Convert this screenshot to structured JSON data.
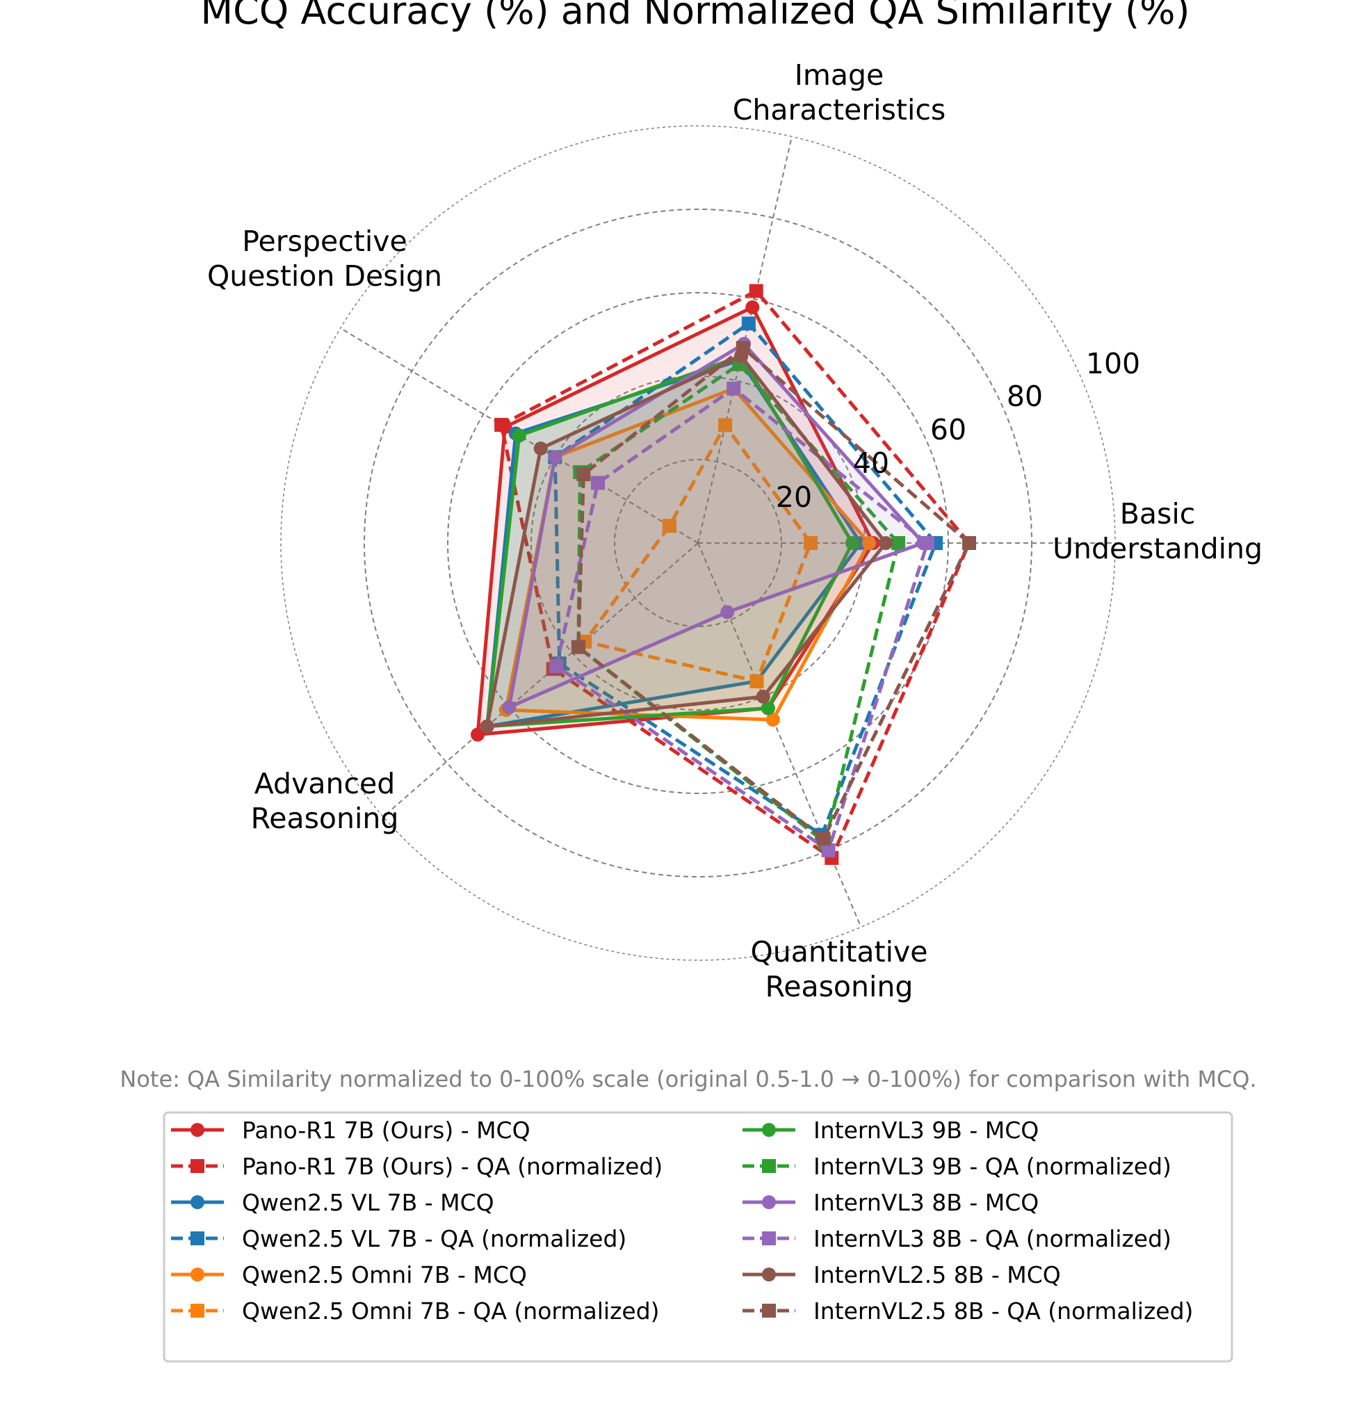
{
  "chart_data": {
    "type": "radar",
    "title": "MCQ Accuracy (%) and Normalized QA Similarity (%)",
    "axes": [
      [
        "Basic",
        "Understanding"
      ],
      [
        "Image",
        "Characteristics"
      ],
      [
        "Perspective",
        "Question Design"
      ],
      [
        "Advanced",
        "Reasoning"
      ],
      [
        "Quantitative",
        "Reasoning"
      ]
    ],
    "rlim": [
      0,
      100
    ],
    "rticks": [
      "20",
      "40",
      "60",
      "80",
      "100"
    ],
    "grid": true,
    "legend_position": "bottom",
    "note": "Note: QA Similarity normalized to 0-100% scale (original 0.5-1.0 → 0-100%) for comparison with MCQ.",
    "series": [
      {
        "name": "Pano-R1 7B (Ours) - MCQ",
        "color": "#d62728",
        "style": "solid",
        "marker": "circle",
        "fill": true,
        "values": [
          42,
          58,
          54,
          70,
          43
        ]
      },
      {
        "name": "Pano-R1 7B (Ours) - QA (normalized)",
        "color": "#d62728",
        "style": "dashed",
        "marker": "square",
        "fill": false,
        "values": [
          65,
          62,
          55,
          46,
          82
        ]
      },
      {
        "name": "Qwen2.5 VL 7B - MCQ",
        "color": "#1f77b4",
        "style": "solid",
        "marker": "circle",
        "fill": true,
        "values": [
          39,
          45,
          51,
          67,
          36
        ]
      },
      {
        "name": "Qwen2.5 VL 7B - QA (normalized)",
        "color": "#1f77b4",
        "style": "dashed",
        "marker": "square",
        "fill": false,
        "values": [
          57,
          54,
          40,
          44,
          76
        ]
      },
      {
        "name": "Qwen2.5 Omni 7B - MCQ",
        "color": "#ff7f0e",
        "style": "solid",
        "marker": "circle",
        "fill": true,
        "values": [
          41,
          38,
          40,
          61,
          46
        ]
      },
      {
        "name": "Qwen2.5 Omni 7B - QA (normalized)",
        "color": "#ff7f0e",
        "style": "dashed",
        "marker": "square",
        "fill": false,
        "values": [
          27,
          29,
          8,
          36,
          36
        ]
      },
      {
        "name": "InternVL3 9B - MCQ",
        "color": "#2ca02c",
        "style": "solid",
        "marker": "circle",
        "fill": true,
        "values": [
          37,
          46,
          50,
          67,
          43
        ]
      },
      {
        "name": "InternVL3 9B - QA (normalized)",
        "color": "#2ca02c",
        "style": "dashed",
        "marker": "square",
        "fill": false,
        "values": [
          48,
          44,
          33,
          38,
          78
        ]
      },
      {
        "name": "InternVL3 8B - MCQ",
        "color": "#9467bd",
        "style": "solid",
        "marker": "circle",
        "fill": true,
        "values": [
          54,
          49,
          40,
          60,
          18
        ]
      },
      {
        "name": "InternVL3 8B - QA (normalized)",
        "color": "#9467bd",
        "style": "dashed",
        "marker": "square",
        "fill": false,
        "values": [
          55,
          38,
          28,
          45,
          80
        ]
      },
      {
        "name": "InternVL2.5 8B - MCQ",
        "color": "#8c564b",
        "style": "solid",
        "marker": "circle",
        "fill": true,
        "values": [
          45,
          46,
          44,
          67,
          40
        ]
      },
      {
        "name": "InternVL2.5 8B - QA (normalized)",
        "color": "#8c564b",
        "style": "dashed",
        "marker": "square",
        "fill": false,
        "values": [
          65,
          48,
          32,
          38,
          77
        ]
      }
    ]
  }
}
